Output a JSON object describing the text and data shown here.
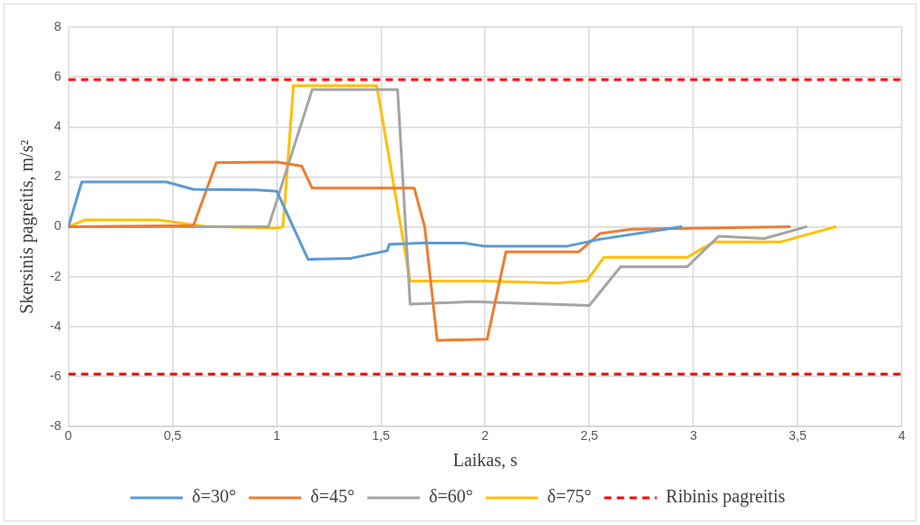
{
  "chart_data": {
    "type": "line",
    "xlabel": "Laikas, s",
    "ylabel": "Skersinis pagreitis, m/s²",
    "xlim": [
      0,
      4
    ],
    "xticks": [
      {
        "value": 0,
        "label": "0"
      },
      {
        "value": 0.5,
        "label": "0,5"
      },
      {
        "value": 1,
        "label": "1"
      },
      {
        "value": 1.5,
        "label": "1,5"
      },
      {
        "value": 2,
        "label": "2"
      },
      {
        "value": 2.5,
        "label": "2,5"
      },
      {
        "value": 3,
        "label": "3"
      },
      {
        "value": 3.5,
        "label": "3,5"
      },
      {
        "value": 4,
        "label": "4"
      }
    ],
    "ylim": [
      -8,
      8
    ],
    "yticks": [
      -8,
      -6,
      -4,
      -2,
      0,
      2,
      4,
      6,
      8
    ],
    "grid": true,
    "legend": "bottom",
    "marker": "none",
    "line_style": "solid",
    "series": [
      {
        "name": "δ=30°",
        "color": "#5b9bd5",
        "x": [
          0,
          0.064,
          0.47,
          0.6,
          0.9,
          1.0,
          1.15,
          1.35,
          1.53,
          1.54,
          1.69,
          1.9,
          2.0,
          2.39,
          2.55,
          2.94
        ],
        "values": [
          0,
          1.8,
          1.8,
          1.5,
          1.48,
          1.43,
          -1.3,
          -1.27,
          -0.96,
          -0.7,
          -0.65,
          -0.65,
          -0.78,
          -0.78,
          -0.5,
          0
        ]
      },
      {
        "name": "δ=45°",
        "color": "#ed7d31",
        "x": [
          0,
          0.6,
          0.71,
          1.0,
          1.12,
          1.17,
          1.66,
          1.71,
          1.77,
          2.01,
          2.1,
          2.45,
          2.55,
          2.7,
          3.46
        ],
        "values": [
          0,
          0.05,
          2.57,
          2.6,
          2.43,
          1.55,
          1.55,
          0,
          -4.55,
          -4.5,
          -1.0,
          -1.0,
          -0.27,
          -0.1,
          0
        ]
      },
      {
        "name": "δ=60°",
        "color": "#a5a5a5",
        "x": [
          0,
          0.96,
          1.17,
          1.58,
          1.64,
          1.93,
          2.5,
          2.65,
          2.97,
          3.12,
          3.34,
          3.54
        ],
        "values": [
          0,
          0,
          5.5,
          5.5,
          -3.1,
          -3.0,
          -3.15,
          -1.6,
          -1.6,
          -0.38,
          -0.47,
          0
        ]
      },
      {
        "name": "δ=75°",
        "color": "#ffc000",
        "x": [
          0,
          0.08,
          0.43,
          0.65,
          1.0,
          1.03,
          1.08,
          1.48,
          1.64,
          2.0,
          2.35,
          2.49,
          2.57,
          2.97,
          3.1,
          3.42,
          3.68
        ],
        "values": [
          0,
          0.28,
          0.28,
          0.02,
          -0.05,
          0,
          5.65,
          5.65,
          -2.17,
          -2.17,
          -2.25,
          -2.15,
          -1.22,
          -1.22,
          -0.6,
          -0.6,
          0
        ]
      }
    ],
    "ref_lines": [
      {
        "axis": "y",
        "value": 5.9,
        "label": "Ribinis pagreitis",
        "color": "#ff0000",
        "line_style": "dashed"
      },
      {
        "axis": "y",
        "value": -5.9,
        "color": "#ff0000",
        "line_style": "dashed"
      }
    ]
  }
}
